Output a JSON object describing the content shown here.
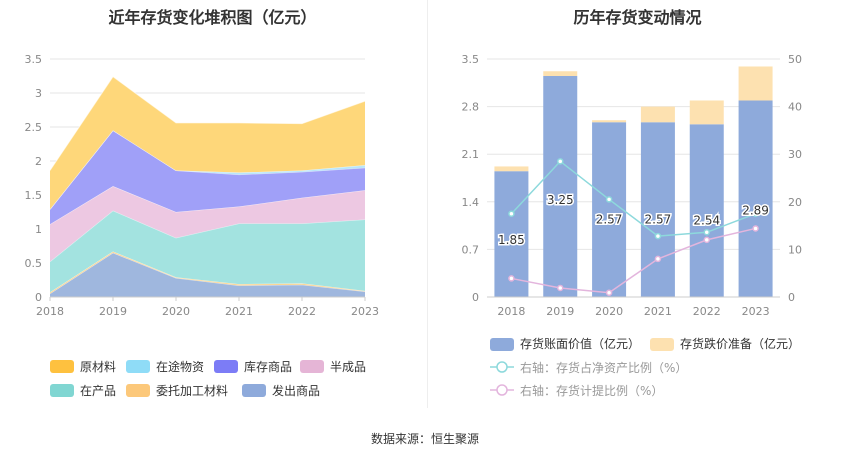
{
  "charts_meta": {
    "left_title": "近年存货变化堆积图（亿元）",
    "right_title": "历年存货变动情况",
    "source": "数据来源：恒生聚源"
  },
  "chart_data": [
    {
      "type": "area",
      "title": "近年存货变化堆积图（亿元）",
      "stacked": true,
      "x": [
        "2018",
        "2019",
        "2020",
        "2021",
        "2022",
        "2023"
      ],
      "ylim": [
        0,
        3.5
      ],
      "yticks": [
        "0",
        "0.5",
        "1",
        "1.5",
        "2",
        "2.5",
        "3",
        "3.5"
      ],
      "grid": true,
      "legend_position": "bottom",
      "series": [
        {
          "name": "发出商品",
          "color": "#9fb7de",
          "values": [
            0.05,
            0.65,
            0.28,
            0.17,
            0.18,
            0.08
          ]
        },
        {
          "name": "委托加工材料",
          "color": "#fcd38a",
          "values": [
            0.02,
            0.02,
            0.01,
            0.02,
            0.02,
            0.01
          ]
        },
        {
          "name": "在产品",
          "color": "#a3e3e0",
          "values": [
            0.45,
            0.6,
            0.58,
            0.89,
            0.88,
            1.05
          ]
        },
        {
          "name": "半成品",
          "color": "#edc8e2",
          "values": [
            0.55,
            0.36,
            0.38,
            0.25,
            0.38,
            0.43
          ]
        },
        {
          "name": "库存商品",
          "color": "#a0a0f8",
          "values": [
            0.22,
            0.82,
            0.61,
            0.47,
            0.38,
            0.33
          ]
        },
        {
          "name": "在途物资",
          "color": "#b8e6fa",
          "values": [
            0.0,
            0.0,
            0.0,
            0.03,
            0.02,
            0.04
          ]
        },
        {
          "name": "原材料",
          "color": "#fed77a",
          "values": [
            0.57,
            0.79,
            0.7,
            0.73,
            0.69,
            0.94
          ]
        }
      ],
      "legend_order": [
        "原材料",
        "在途物资",
        "库存商品",
        "半成品",
        "在产品",
        "委托加工材料",
        "发出商品"
      ],
      "legend_colors": {
        "原材料": "#fec13f",
        "在途物资": "#8fdcf7",
        "库存商品": "#7c7cf6",
        "半成品": "#e5b5d6",
        "在产品": "#80d6d2",
        "委托加工材料": "#fcc87a",
        "发出商品": "#8eaadb"
      }
    },
    {
      "type": "bar",
      "title": "历年存货变动情况",
      "categories": [
        "2018",
        "2019",
        "2020",
        "2021",
        "2022",
        "2023"
      ],
      "ylim": [
        0,
        3.5
      ],
      "yticks": [
        "0",
        "0.7",
        "1.4",
        "2.1",
        "2.8",
        "3.5"
      ],
      "y2lim": [
        0,
        50
      ],
      "y2ticks": [
        "0",
        "10",
        "20",
        "30",
        "40",
        "50"
      ],
      "grid": true,
      "legend_position": "bottom",
      "series": [
        {
          "name": "存货账面价值（亿元）",
          "kind": "bar",
          "color": "#8eaadb",
          "values": [
            1.85,
            3.25,
            2.57,
            2.57,
            2.54,
            2.89
          ],
          "labels": [
            "1.85",
            "3.25",
            "2.57",
            "2.57",
            "2.54",
            "2.89"
          ]
        },
        {
          "name": "存货跌价准备（亿元）",
          "kind": "bar-stacked",
          "color": "#fde1b0",
          "values": [
            0.07,
            0.07,
            0.03,
            0.23,
            0.35,
            0.5
          ]
        },
        {
          "name": "右轴：存货占净资产比例（%）",
          "kind": "line",
          "axis": "right",
          "color": "#8dd9dc",
          "values": [
            17.5,
            28.5,
            20.5,
            12.8,
            13.6,
            17.5
          ]
        },
        {
          "name": "右轴：存货计提比例（%）",
          "kind": "line",
          "axis": "right",
          "color": "#e3b5dd",
          "values": [
            3.9,
            1.9,
            0.9,
            8.0,
            12.0,
            14.4
          ]
        }
      ]
    }
  ]
}
